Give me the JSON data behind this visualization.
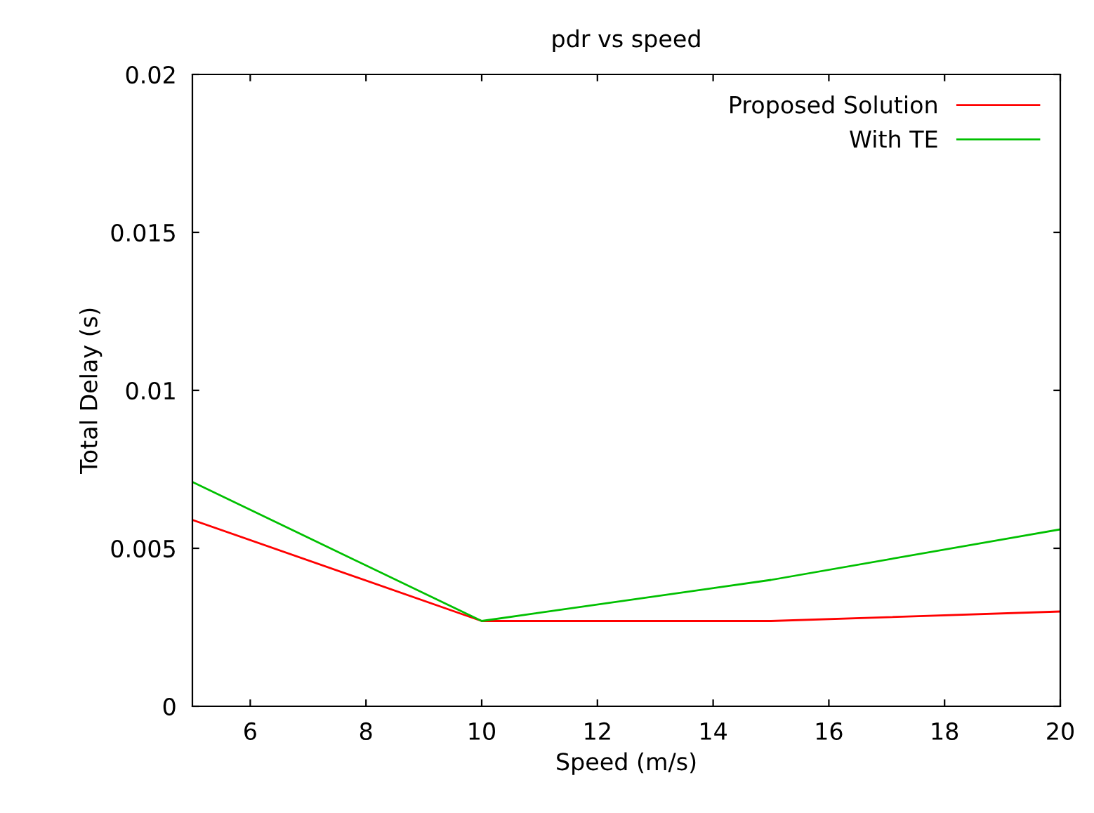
{
  "chart_data": {
    "type": "line",
    "title": "pdr vs speed",
    "xlabel": "Speed (m/s)",
    "ylabel": "Total Delay (s)",
    "x": [
      5,
      10,
      15,
      20
    ],
    "series": [
      {
        "name": "Proposed Solution",
        "color": "#ff0000",
        "values": [
          0.0059,
          0.0027,
          0.0027,
          0.003
        ]
      },
      {
        "name": "With TE",
        "color": "#00c000",
        "values": [
          0.0071,
          0.0027,
          0.004,
          0.0056
        ]
      }
    ],
    "xlim": [
      5,
      20
    ],
    "xticks": [
      6,
      8,
      10,
      12,
      14,
      16,
      18,
      20
    ],
    "ylim": [
      0,
      0.02
    ],
    "yticks": [
      0,
      0.005,
      0.01,
      0.015,
      0.02
    ],
    "grid": false,
    "legend": "top right",
    "marker": "none",
    "line_style": "solid"
  }
}
